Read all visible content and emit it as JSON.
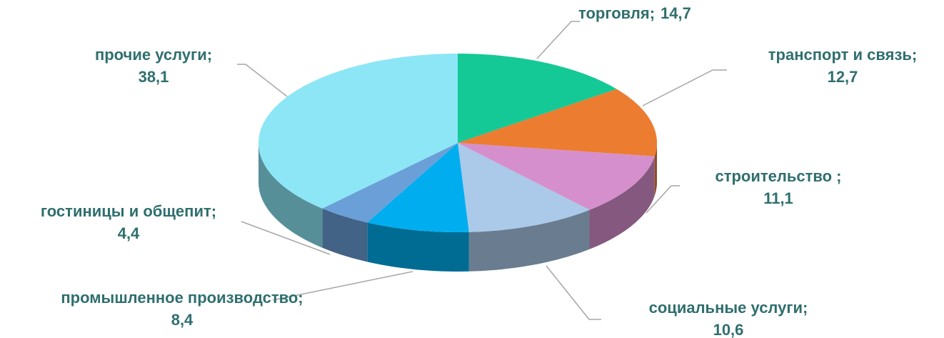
{
  "chart_data": {
    "type": "pie3d",
    "categories": [
      "торговля;",
      "транспорт и связь;",
      "строительство ;",
      "социальные услуги;",
      "промышленное производство;",
      "гостиницы и общепит;",
      "прочие услуги;"
    ],
    "values": [
      14.7,
      12.7,
      11.1,
      10.6,
      8.4,
      4.4,
      38.1
    ],
    "value_labels": [
      "14,7",
      "12,7",
      "11,1",
      "10,6",
      "8,4",
      "4,4",
      "38,1"
    ],
    "colors": [
      "#14c996",
      "#ec7c30",
      "#d68fcd",
      "#abc9e8",
      "#00aeef",
      "#6a9fd8",
      "#8de6f6"
    ]
  }
}
